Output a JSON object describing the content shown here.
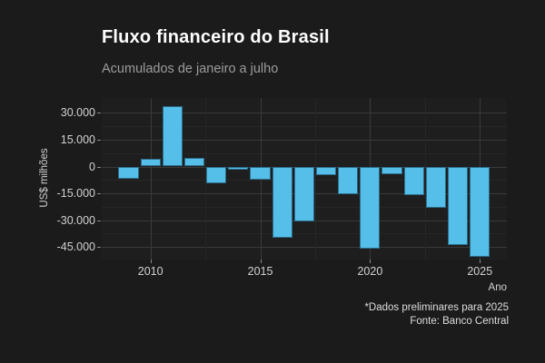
{
  "header": {
    "title": "Fluxo financeiro do Brasil",
    "subtitle": "Acumulados de janeiro a julho"
  },
  "footer": {
    "note": "*Dados preliminares para 2025",
    "source": "Fonte: Banco Central"
  },
  "chart_data": {
    "type": "bar",
    "title": "Fluxo financeiro do Brasil",
    "subtitle": "Acumulados de janeiro a julho",
    "xlabel": "Ano",
    "ylabel": "US$ milhões",
    "x": [
      2009,
      2010,
      2011,
      2012,
      2013,
      2014,
      2015,
      2016,
      2017,
      2018,
      2019,
      2020,
      2021,
      2022,
      2023,
      2024,
      2025
    ],
    "values": [
      -6900,
      4300,
      33700,
      4800,
      -9200,
      -1600,
      -7500,
      -40000,
      -30700,
      -4700,
      -15300,
      -46000,
      -4500,
      -15800,
      -23200,
      -44100,
      -50700
    ],
    "units": "US$ milhões",
    "x_ticks": [
      2010,
      2015,
      2020,
      2025
    ],
    "x_tick_labels": [
      "2010",
      "2015",
      "2020",
      "2025"
    ],
    "x_minor_ticks": [
      2012.5,
      2017.5,
      2022.5
    ],
    "y_ticks": [
      30000,
      15000,
      0,
      -15000,
      -30000,
      -45000
    ],
    "y_tick_labels": [
      "30.000",
      "15.000",
      "0",
      "-15.000",
      "-30.000",
      "-45.000"
    ],
    "y_minor_ticks": [
      22500,
      7500,
      -7500,
      -22500,
      -37500
    ],
    "ylim": [
      -52500,
      38400
    ],
    "grid": true,
    "legend": false,
    "bar_color": "#56bfe9",
    "background_color": "#1b1b1b",
    "panel_color": "#1e1e1e"
  }
}
